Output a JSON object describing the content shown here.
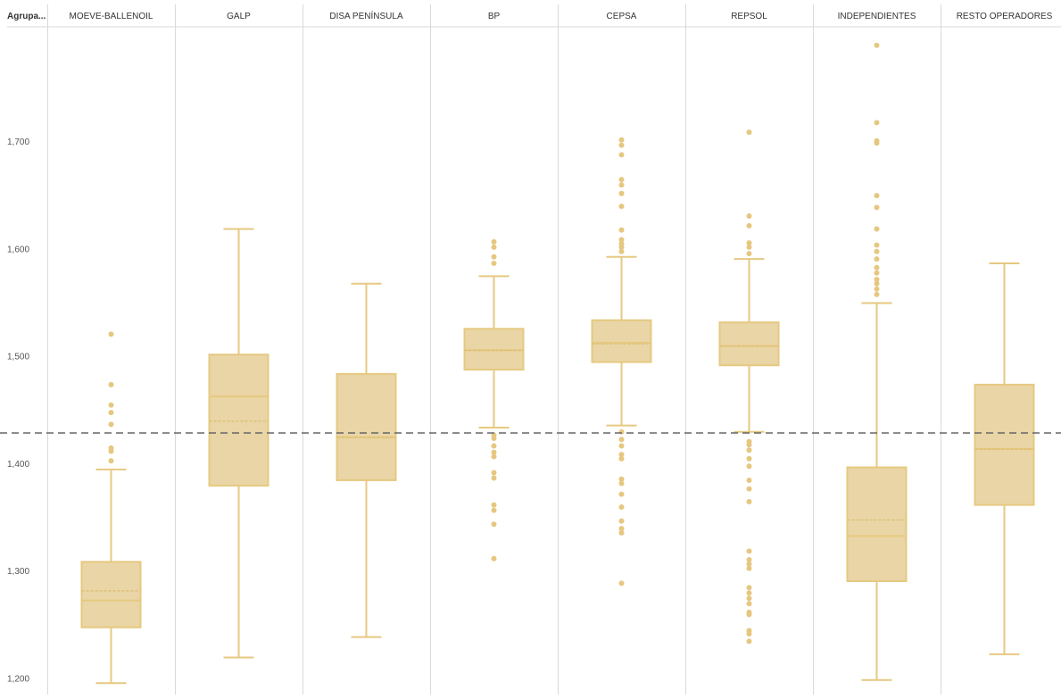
{
  "header": {
    "row_label": "Agrupa..."
  },
  "colors": {
    "box_fill": "#e9d5a5",
    "box_stroke": "#e6c981",
    "outlier": "#e6c77f",
    "reference_line": "#666666",
    "gridline": "#d9d9d9",
    "background": "#ffffff"
  },
  "chart_data": {
    "type": "boxplot",
    "title": "",
    "xlabel": "",
    "ylabel": "",
    "ylim": [
      1.195,
      1.8
    ],
    "y_ticks": [
      1.2,
      1.3,
      1.4,
      1.5,
      1.6,
      1.7
    ],
    "y_tick_labels": [
      "1,200",
      "1,300",
      "1,400",
      "1,500",
      "1,600",
      "1,700"
    ],
    "reference_line": 1.429,
    "grid": false,
    "categories": [
      "MOEVE-BALLENOIL",
      "GALP",
      "DISA PENÍNSULA",
      "BP",
      "CEPSA",
      "REPSOL",
      "INDEPENDIENTES",
      "RESTO OPERADORES"
    ],
    "boxes": [
      {
        "name": "MOEVE-BALLENOIL",
        "whisker_low": 1.196,
        "q1": 1.248,
        "median": 1.273,
        "mean": 1.282,
        "q3": 1.309,
        "whisker_high": 1.395,
        "outliers": [
          1.403,
          1.412,
          1.415,
          1.437,
          1.448,
          1.455,
          1.474,
          1.521
        ]
      },
      {
        "name": "GALP",
        "whisker_low": 1.22,
        "q1": 1.38,
        "median": 1.463,
        "mean": 1.44,
        "q3": 1.502,
        "whisker_high": 1.619,
        "outliers": []
      },
      {
        "name": "DISA PENÍNSULA",
        "whisker_low": 1.239,
        "q1": 1.385,
        "median": 1.425,
        "mean": 1.425,
        "q3": 1.484,
        "whisker_high": 1.568,
        "outliers": []
      },
      {
        "name": "BP",
        "whisker_low": 1.434,
        "q1": 1.488,
        "median": 1.506,
        "mean": 1.506,
        "q3": 1.526,
        "whisker_high": 1.575,
        "outliers": [
          1.312,
          1.344,
          1.357,
          1.362,
          1.387,
          1.392,
          1.407,
          1.411,
          1.417,
          1.424,
          1.427,
          1.587,
          1.593,
          1.602,
          1.607
        ]
      },
      {
        "name": "CEPSA",
        "whisker_low": 1.436,
        "q1": 1.495,
        "median": 1.513,
        "mean": 1.512,
        "q3": 1.534,
        "whisker_high": 1.593,
        "outliers": [
          1.289,
          1.336,
          1.34,
          1.347,
          1.36,
          1.372,
          1.382,
          1.386,
          1.405,
          1.409,
          1.417,
          1.423,
          1.43,
          1.598,
          1.602,
          1.605,
          1.609,
          1.618,
          1.64,
          1.652,
          1.66,
          1.665,
          1.688,
          1.697,
          1.702
        ]
      },
      {
        "name": "REPSOL",
        "whisker_low": 1.43,
        "q1": 1.492,
        "median": 1.51,
        "mean": 1.51,
        "q3": 1.532,
        "whisker_high": 1.591,
        "outliers": [
          1.235,
          1.242,
          1.245,
          1.26,
          1.262,
          1.27,
          1.275,
          1.28,
          1.285,
          1.303,
          1.307,
          1.311,
          1.319,
          1.365,
          1.377,
          1.385,
          1.398,
          1.405,
          1.413,
          1.418,
          1.421,
          1.596,
          1.602,
          1.606,
          1.622,
          1.631,
          1.709
        ]
      },
      {
        "name": "INDEPENDIENTES",
        "whisker_low": 1.199,
        "q1": 1.291,
        "median": 1.333,
        "mean": 1.348,
        "q3": 1.397,
        "whisker_high": 1.55,
        "outliers": [
          1.558,
          1.563,
          1.568,
          1.572,
          1.578,
          1.583,
          1.591,
          1.598,
          1.604,
          1.619,
          1.639,
          1.65,
          1.699,
          1.701,
          1.718,
          1.79
        ]
      },
      {
        "name": "RESTO OPERADORES",
        "whisker_low": 1.223,
        "q1": 1.362,
        "median": 1.414,
        "mean": 1.414,
        "q3": 1.474,
        "whisker_high": 1.587,
        "outliers": []
      }
    ]
  }
}
